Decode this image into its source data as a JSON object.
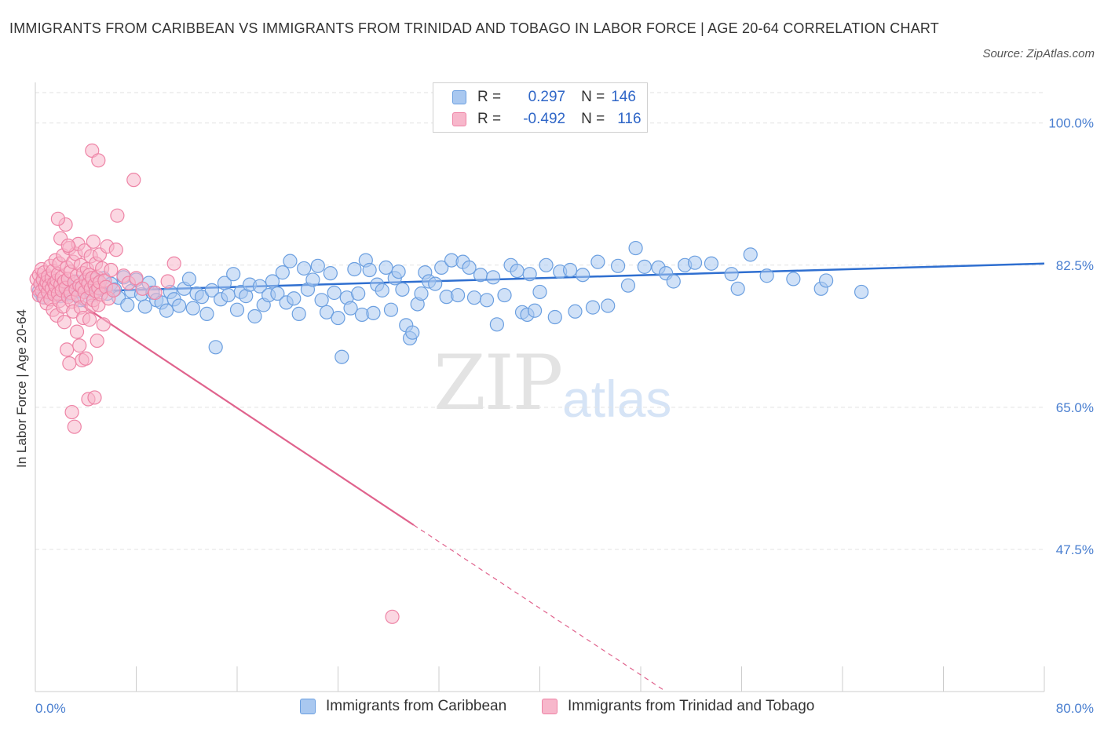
{
  "title": "IMMIGRANTS FROM CARIBBEAN VS IMMIGRANTS FROM TRINIDAD AND TOBAGO IN LABOR FORCE | AGE 20-64 CORRELATION CHART",
  "source": "Source: ZipAtlas.com",
  "watermark": {
    "zip": "ZIP",
    "atlas": "atlas"
  },
  "legend_top": {
    "rows": [
      {
        "r_label": "R =",
        "r_value": "0.297",
        "n_label": "N =",
        "n_value": "146"
      },
      {
        "r_label": "R =",
        "r_value": "-0.492",
        "n_label": "N =",
        "n_value": "116"
      }
    ]
  },
  "legend_bottom": {
    "items": [
      {
        "label": "Immigrants from Caribbean"
      },
      {
        "label": "Immigrants from Trinidad and Tobago"
      }
    ]
  },
  "colors": {
    "blue_fill": "#a9c8f0",
    "blue_stroke": "#6b9fe0",
    "blue_line": "#2f6fd0",
    "pink_fill": "#f7b7cb",
    "pink_stroke": "#ee84a6",
    "pink_line": "#e0638d",
    "grid": "#e2e2e2",
    "axis": "#cccccc",
    "tick_text": "#4a7fd0"
  },
  "chart_data": {
    "type": "scatter",
    "title": "IMMIGRANTS FROM CARIBBEAN VS IMMIGRANTS FROM TRINIDAD AND TOBAGO IN LABOR FORCE | AGE 20-64 CORRELATION CHART",
    "xlabel": "",
    "ylabel": "In Labor Force | Age 20-64",
    "xlim": [
      0,
      80
    ],
    "ylim": [
      30,
      105
    ],
    "x_tick_labels": [
      "0.0%",
      "80.0%"
    ],
    "y_ticks": [
      47.5,
      65.0,
      82.5,
      100.0
    ],
    "y_tick_labels": [
      "47.5%",
      "65.0%",
      "82.5%",
      "100.0%"
    ],
    "grid": true,
    "legend_position": "top-center",
    "series": [
      {
        "name": "Immigrants from Caribbean",
        "stats": {
          "R": 0.297,
          "N": 146
        },
        "trend": {
          "x": [
            0,
            80
          ],
          "y": [
            79.1,
            82.7
          ],
          "style": "solid"
        },
        "points": [
          [
            0.3,
            79.3
          ],
          [
            0.5,
            80.1
          ],
          [
            0.6,
            78.6
          ],
          [
            0.8,
            79.6
          ],
          [
            1.0,
            80.4
          ],
          [
            1.2,
            79.0
          ],
          [
            1.4,
            80.0
          ],
          [
            1.5,
            78.9
          ],
          [
            1.7,
            79.5
          ],
          [
            1.9,
            80.2
          ],
          [
            2.0,
            78.7
          ],
          [
            2.2,
            79.8
          ],
          [
            2.4,
            80.3
          ],
          [
            2.6,
            79.1
          ],
          [
            2.8,
            78.9
          ],
          [
            3.0,
            79.7
          ],
          [
            3.2,
            80.5
          ],
          [
            3.4,
            79.3
          ],
          [
            3.6,
            78.2
          ],
          [
            3.8,
            79.9
          ],
          [
            4.0,
            80.6
          ],
          [
            4.3,
            79.4
          ],
          [
            4.5,
            78.8
          ],
          [
            4.8,
            80.7
          ],
          [
            5.1,
            79.6
          ],
          [
            5.4,
            80.9
          ],
          [
            5.7,
            79.0
          ],
          [
            6.0,
            80.2
          ],
          [
            6.3,
            79.5
          ],
          [
            6.6,
            78.5
          ],
          [
            7.0,
            81.0
          ],
          [
            7.3,
            77.6
          ],
          [
            7.6,
            79.3
          ],
          [
            8.0,
            80.7
          ],
          [
            8.4,
            78.9
          ],
          [
            8.7,
            77.4
          ],
          [
            9.0,
            80.3
          ],
          [
            9.3,
            79.1
          ],
          [
            9.6,
            78.2
          ],
          [
            10.0,
            77.9
          ],
          [
            10.4,
            76.9
          ],
          [
            10.7,
            79.2
          ],
          [
            11.0,
            78.3
          ],
          [
            11.4,
            77.5
          ],
          [
            11.8,
            79.6
          ],
          [
            12.2,
            80.8
          ],
          [
            12.5,
            77.2
          ],
          [
            12.8,
            79.0
          ],
          [
            13.2,
            78.6
          ],
          [
            13.6,
            76.5
          ],
          [
            14.0,
            79.4
          ],
          [
            14.3,
            72.4
          ],
          [
            14.7,
            78.3
          ],
          [
            15.0,
            80.3
          ],
          [
            15.3,
            78.8
          ],
          [
            15.7,
            81.4
          ],
          [
            16.0,
            77.0
          ],
          [
            16.3,
            79.2
          ],
          [
            16.7,
            78.7
          ],
          [
            17.0,
            80.1
          ],
          [
            17.4,
            76.2
          ],
          [
            17.8,
            79.9
          ],
          [
            18.1,
            77.6
          ],
          [
            18.5,
            78.8
          ],
          [
            18.8,
            80.5
          ],
          [
            19.2,
            79.0
          ],
          [
            19.6,
            81.6
          ],
          [
            19.9,
            77.9
          ],
          [
            20.2,
            83.0
          ],
          [
            20.5,
            78.4
          ],
          [
            20.9,
            76.5
          ],
          [
            21.3,
            82.1
          ],
          [
            21.6,
            79.5
          ],
          [
            22.0,
            80.7
          ],
          [
            22.4,
            82.4
          ],
          [
            22.7,
            78.2
          ],
          [
            23.1,
            76.7
          ],
          [
            23.4,
            81.5
          ],
          [
            23.7,
            79.1
          ],
          [
            24.0,
            76.0
          ],
          [
            24.3,
            71.2
          ],
          [
            24.7,
            78.5
          ],
          [
            25.0,
            77.2
          ],
          [
            25.3,
            82.0
          ],
          [
            25.6,
            79.0
          ],
          [
            25.9,
            76.4
          ],
          [
            26.2,
            83.1
          ],
          [
            26.5,
            81.9
          ],
          [
            26.8,
            76.6
          ],
          [
            27.1,
            80.1
          ],
          [
            27.5,
            79.4
          ],
          [
            27.8,
            82.2
          ],
          [
            28.2,
            77.0
          ],
          [
            28.5,
            80.9
          ],
          [
            28.8,
            81.7
          ],
          [
            29.1,
            79.5
          ],
          [
            29.4,
            75.1
          ],
          [
            29.7,
            73.5
          ],
          [
            29.9,
            74.2
          ],
          [
            30.3,
            77.7
          ],
          [
            30.6,
            79.0
          ],
          [
            30.9,
            81.6
          ],
          [
            31.2,
            80.5
          ],
          [
            31.7,
            80.2
          ],
          [
            32.2,
            82.2
          ],
          [
            32.6,
            78.6
          ],
          [
            33.0,
            83.1
          ],
          [
            33.5,
            78.8
          ],
          [
            33.9,
            82.9
          ],
          [
            34.4,
            82.2
          ],
          [
            34.8,
            78.5
          ],
          [
            35.3,
            81.3
          ],
          [
            35.8,
            78.2
          ],
          [
            36.3,
            81.0
          ],
          [
            36.6,
            75.2
          ],
          [
            37.2,
            78.8
          ],
          [
            37.7,
            82.5
          ],
          [
            38.2,
            81.8
          ],
          [
            38.6,
            76.7
          ],
          [
            39.0,
            76.4
          ],
          [
            39.2,
            81.4
          ],
          [
            39.6,
            76.9
          ],
          [
            40.0,
            79.2
          ],
          [
            40.5,
            82.5
          ],
          [
            41.2,
            76.1
          ],
          [
            41.6,
            81.7
          ],
          [
            42.4,
            81.9
          ],
          [
            42.8,
            76.8
          ],
          [
            43.4,
            81.3
          ],
          [
            44.2,
            77.3
          ],
          [
            44.6,
            82.9
          ],
          [
            45.4,
            77.5
          ],
          [
            46.2,
            82.4
          ],
          [
            47.0,
            80.0
          ],
          [
            47.6,
            84.6
          ],
          [
            48.3,
            82.3
          ],
          [
            49.4,
            82.2
          ],
          [
            50.0,
            81.5
          ],
          [
            50.6,
            80.5
          ],
          [
            51.5,
            82.5
          ],
          [
            52.3,
            82.8
          ],
          [
            53.6,
            82.7
          ],
          [
            55.2,
            81.4
          ],
          [
            55.7,
            79.6
          ],
          [
            56.7,
            83.8
          ],
          [
            58.0,
            81.2
          ],
          [
            60.1,
            80.8
          ],
          [
            62.3,
            79.6
          ],
          [
            62.7,
            80.6
          ],
          [
            65.5,
            79.2
          ]
        ]
      },
      {
        "name": "Immigrants from Trinidad and Tobago",
        "stats": {
          "R": -0.492,
          "N": 116
        },
        "trend": {
          "x": [
            0,
            30,
            50
          ],
          "y": [
            81.4,
            50.5,
            30.0
          ],
          "style": "solid then dashed after x=30"
        },
        "points": [
          [
            0.1,
            80.8
          ],
          [
            0.2,
            79.6
          ],
          [
            0.3,
            81.3
          ],
          [
            0.3,
            78.8
          ],
          [
            0.4,
            80.2
          ],
          [
            0.5,
            82.0
          ],
          [
            0.5,
            79.3
          ],
          [
            0.6,
            80.7
          ],
          [
            0.7,
            78.5
          ],
          [
            0.7,
            81.6
          ],
          [
            0.8,
            79.9
          ],
          [
            0.9,
            80.4
          ],
          [
            0.9,
            77.8
          ],
          [
            1.0,
            81.1
          ],
          [
            1.0,
            79.2
          ],
          [
            1.1,
            80.0
          ],
          [
            1.2,
            82.4
          ],
          [
            1.2,
            78.3
          ],
          [
            1.3,
            80.9
          ],
          [
            1.3,
            79.6
          ],
          [
            1.4,
            81.8
          ],
          [
            1.4,
            77.0
          ],
          [
            1.5,
            80.3
          ],
          [
            1.5,
            78.9
          ],
          [
            1.6,
            83.1
          ],
          [
            1.6,
            79.9
          ],
          [
            1.7,
            80.6
          ],
          [
            1.7,
            76.3
          ],
          [
            1.8,
            81.4
          ],
          [
            1.8,
            79.0
          ],
          [
            1.9,
            82.7
          ],
          [
            1.9,
            78.1
          ],
          [
            2.0,
            80.1
          ],
          [
            2.0,
            85.8
          ],
          [
            2.1,
            79.4
          ],
          [
            2.1,
            81.0
          ],
          [
            2.2,
            77.4
          ],
          [
            2.2,
            83.7
          ],
          [
            2.3,
            80.5
          ],
          [
            2.3,
            75.5
          ],
          [
            2.4,
            87.5
          ],
          [
            2.4,
            79.7
          ],
          [
            2.5,
            82.2
          ],
          [
            2.5,
            72.1
          ],
          [
            2.6,
            80.8
          ],
          [
            2.6,
            78.6
          ],
          [
            2.7,
            84.6
          ],
          [
            2.7,
            70.4
          ],
          [
            2.8,
            79.1
          ],
          [
            2.8,
            81.7
          ],
          [
            2.9,
            64.4
          ],
          [
            2.9,
            78.0
          ],
          [
            3.0,
            82.9
          ],
          [
            3.0,
            76.8
          ],
          [
            3.1,
            80.4
          ],
          [
            3.1,
            62.6
          ],
          [
            3.2,
            83.9
          ],
          [
            3.2,
            79.5
          ],
          [
            3.3,
            81.2
          ],
          [
            3.3,
            74.3
          ],
          [
            3.4,
            85.1
          ],
          [
            3.4,
            78.7
          ],
          [
            3.5,
            80.0
          ],
          [
            3.5,
            72.6
          ],
          [
            3.6,
            82.5
          ],
          [
            3.6,
            77.3
          ],
          [
            3.7,
            79.8
          ],
          [
            3.7,
            70.8
          ],
          [
            3.8,
            81.5
          ],
          [
            3.8,
            76.0
          ],
          [
            3.9,
            84.3
          ],
          [
            3.9,
            79.2
          ],
          [
            4.0,
            80.7
          ],
          [
            4.0,
            71.0
          ],
          [
            4.1,
            82.0
          ],
          [
            4.1,
            78.4
          ],
          [
            4.2,
            66.0
          ],
          [
            4.2,
            80.2
          ],
          [
            4.3,
            81.3
          ],
          [
            4.3,
            75.8
          ],
          [
            4.4,
            79.6
          ],
          [
            4.4,
            83.6
          ],
          [
            4.5,
            77.5
          ],
          [
            4.5,
            80.9
          ],
          [
            4.6,
            78.2
          ],
          [
            4.6,
            85.4
          ],
          [
            4.7,
            80.1
          ],
          [
            4.7,
            66.2
          ],
          [
            4.8,
            82.7
          ],
          [
            4.8,
            79.3
          ],
          [
            4.9,
            81.0
          ],
          [
            4.9,
            73.2
          ],
          [
            5.0,
            79.7
          ],
          [
            5.0,
            77.6
          ],
          [
            5.1,
            80.4
          ],
          [
            5.1,
            83.8
          ],
          [
            5.2,
            78.9
          ],
          [
            5.3,
            82.1
          ],
          [
            5.4,
            75.2
          ],
          [
            5.5,
            80.6
          ],
          [
            5.6,
            79.8
          ],
          [
            5.7,
            84.8
          ],
          [
            5.8,
            78.4
          ],
          [
            6.0,
            81.9
          ],
          [
            6.2,
            79.4
          ],
          [
            6.4,
            84.4
          ],
          [
            7.0,
            81.2
          ],
          [
            7.4,
            80.3
          ],
          [
            7.8,
            93.0
          ],
          [
            8.0,
            80.9
          ],
          [
            8.5,
            79.6
          ],
          [
            9.5,
            79.1
          ],
          [
            10.5,
            80.5
          ],
          [
            11.0,
            82.7
          ],
          [
            6.5,
            88.6
          ],
          [
            4.5,
            96.6
          ],
          [
            5.0,
            95.4
          ],
          [
            1.8,
            88.2
          ],
          [
            2.6,
            84.9
          ],
          [
            28.3,
            39.2
          ]
        ]
      }
    ]
  }
}
